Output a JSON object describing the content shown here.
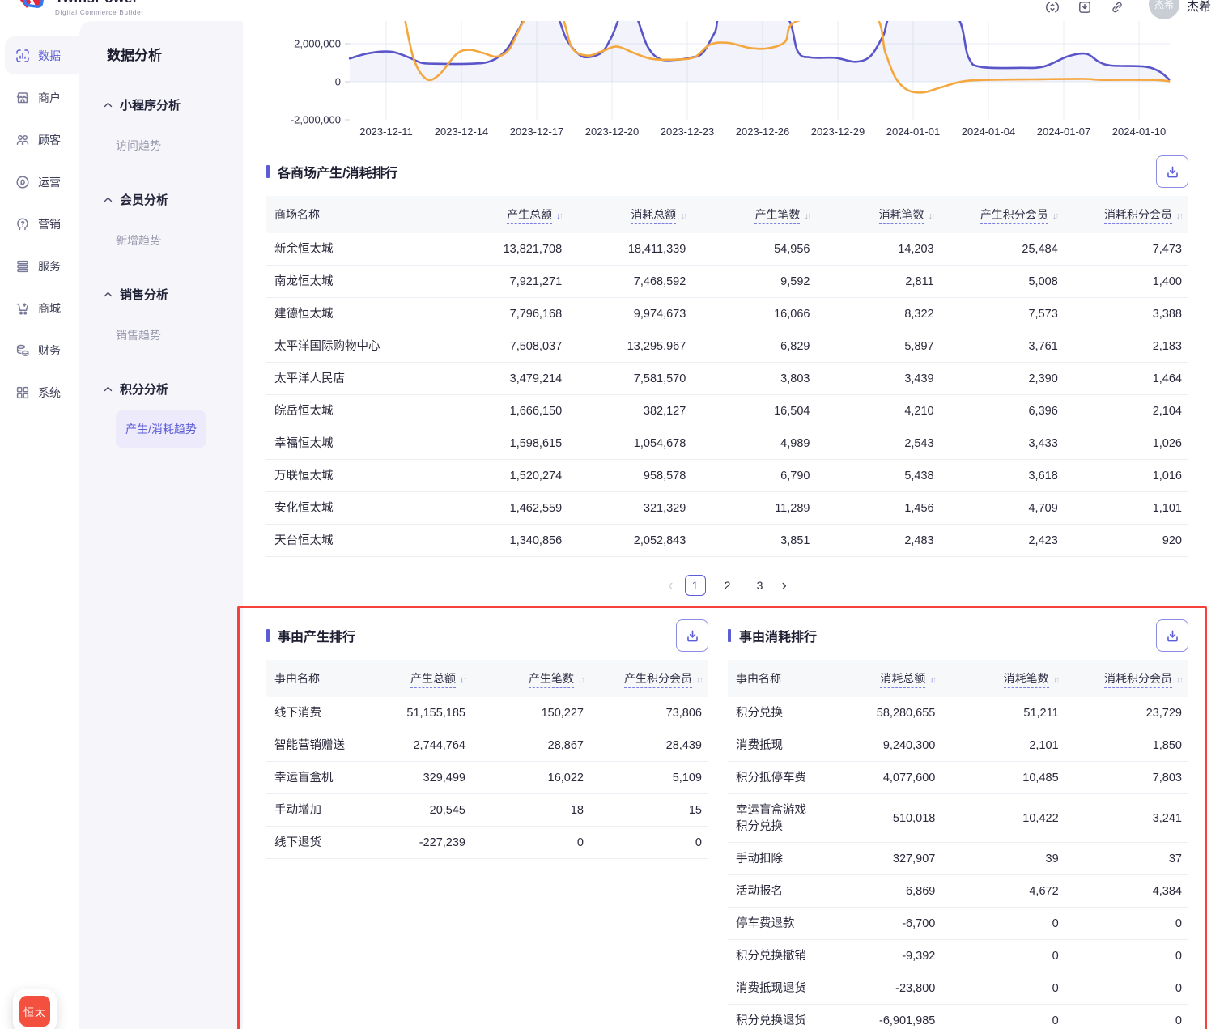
{
  "header": {
    "brand": {
      "name": "TwinsPower",
      "subtitle": "Digital Commerce Builder"
    },
    "icons": [
      "sync-icon",
      "version-box-icon",
      "link-icon"
    ],
    "user": {
      "avatar_text": "杰希",
      "name": "杰希"
    }
  },
  "sidebar": {
    "items": [
      {
        "key": "data",
        "label": "数据",
        "icon": "data-chart-icon",
        "active": true
      },
      {
        "key": "merchant",
        "label": "商户",
        "icon": "merchant-store-icon",
        "active": false
      },
      {
        "key": "customers",
        "label": "顾客",
        "icon": "customers-icon",
        "active": false
      },
      {
        "key": "operations",
        "label": "运营",
        "icon": "operations-icon",
        "active": false
      },
      {
        "key": "marketing",
        "label": "营销",
        "icon": "marketing-icon",
        "active": false
      },
      {
        "key": "service",
        "label": "服务",
        "icon": "service-list-icon",
        "active": false
      },
      {
        "key": "mall",
        "label": "商城",
        "icon": "mall-cart-icon",
        "active": false
      },
      {
        "key": "finance",
        "label": "财务",
        "icon": "finance-coins-icon",
        "active": false
      },
      {
        "key": "system",
        "label": "系统",
        "icon": "system-grid-icon",
        "active": false
      }
    ]
  },
  "subsidebar": {
    "title": "数据分析",
    "sections": [
      {
        "key": "miniapp",
        "label": "小程序分析",
        "items": [
          {
            "key": "visit-trend",
            "label": "访问趋势",
            "active": false
          }
        ]
      },
      {
        "key": "member",
        "label": "会员分析",
        "items": [
          {
            "key": "new-trend",
            "label": "新增趋势",
            "active": false
          }
        ]
      },
      {
        "key": "sales",
        "label": "销售分析",
        "items": [
          {
            "key": "sales-trend",
            "label": "销售趋势",
            "active": false
          }
        ]
      },
      {
        "key": "points",
        "label": "积分分析",
        "items": [
          {
            "key": "produce-consume-trend",
            "label": "产生/消耗趋势",
            "active": true
          }
        ]
      }
    ]
  },
  "chart": {
    "type": "line",
    "y_ticks": [
      {
        "label": "2,000,000",
        "value": 2
      },
      {
        "label": "0",
        "value": 0
      },
      {
        "label": "-2,000,000",
        "value": -2
      }
    ],
    "x_ticks": [
      "2023-12-11",
      "2023-12-14",
      "2023-12-17",
      "2023-12-20",
      "2023-12-23",
      "2023-12-26",
      "2023-12-29",
      "2024-01-01",
      "2024-01-04",
      "2024-01-07",
      "2024-01-10"
    ],
    "unit": "millions",
    "series": [
      {
        "id": "purple-series",
        "color": "#5a55c9",
        "fill": "rgba(90,85,201,0.07)",
        "points": [
          [
            -1.45,
            1.22
          ],
          [
            -0.7,
            1.5
          ],
          [
            0.2,
            1.58
          ],
          [
            0.9,
            1.28
          ],
          [
            1.4,
            1.0
          ],
          [
            1.9,
            0.95
          ],
          [
            3.4,
            0.95
          ],
          [
            4.2,
            1.1
          ],
          [
            4.8,
            1.7
          ],
          [
            5.3,
            2.8
          ],
          [
            5.7,
            3.6
          ],
          [
            6.7,
            3.6
          ],
          [
            7.2,
            2.2
          ],
          [
            7.7,
            1.42
          ],
          [
            8.1,
            1.3
          ],
          [
            8.6,
            1.55
          ],
          [
            9.0,
            2.4
          ],
          [
            9.4,
            3.6
          ],
          [
            9.9,
            3.6
          ],
          [
            10.4,
            1.9
          ],
          [
            10.9,
            1.2
          ],
          [
            11.6,
            1.16
          ],
          [
            12.1,
            1.26
          ],
          [
            12.6,
            1.5
          ],
          [
            13.1,
            2.6
          ],
          [
            13.5,
            3.6
          ],
          [
            15.8,
            3.6
          ],
          [
            16.4,
            1.6
          ],
          [
            16.9,
            1.28
          ],
          [
            17.9,
            1.26
          ],
          [
            18.7,
            1.05
          ],
          [
            19.3,
            1.35
          ],
          [
            19.8,
            2.4
          ],
          [
            20.3,
            3.6
          ],
          [
            22.6,
            3.6
          ],
          [
            23.2,
            1.3
          ],
          [
            23.7,
            0.78
          ],
          [
            25.3,
            0.73
          ],
          [
            26.2,
            0.8
          ],
          [
            27.2,
            1.35
          ],
          [
            27.9,
            1.47
          ],
          [
            28.4,
            1.05
          ],
          [
            28.9,
            0.85
          ],
          [
            30.2,
            0.8
          ],
          [
            30.8,
            0.55
          ],
          [
            31.2,
            0.12
          ]
        ]
      },
      {
        "id": "orange-series",
        "color": "#f4a73e",
        "fill": "none",
        "points": [
          [
            0.7,
            3.6
          ],
          [
            1.1,
            1.2
          ],
          [
            1.6,
            0.15
          ],
          [
            2.1,
            0.35
          ],
          [
            2.8,
            1.45
          ],
          [
            3.3,
            1.68
          ],
          [
            3.9,
            1.5
          ],
          [
            4.4,
            1.32
          ],
          [
            4.9,
            1.7
          ],
          [
            5.4,
            3.0
          ],
          [
            5.8,
            3.6
          ],
          [
            6.9,
            3.6
          ],
          [
            7.4,
            1.8
          ],
          [
            8.0,
            1.38
          ],
          [
            8.6,
            1.6
          ],
          [
            9.2,
            1.85
          ],
          [
            9.9,
            1.5
          ],
          [
            10.6,
            1.2
          ],
          [
            11.6,
            1.17
          ],
          [
            12.3,
            1.3
          ],
          [
            12.9,
            1.95
          ],
          [
            13.6,
            2.05
          ],
          [
            14.5,
            1.78
          ],
          [
            15.2,
            1.76
          ],
          [
            15.9,
            2.1
          ],
          [
            16.4,
            3.2
          ],
          [
            19.3,
            3.6
          ],
          [
            19.9,
            1.5
          ],
          [
            20.3,
            0.2
          ],
          [
            20.8,
            -0.45
          ],
          [
            21.4,
            -0.56
          ],
          [
            22.1,
            -0.3
          ],
          [
            22.9,
            0.0
          ],
          [
            23.8,
            0.1
          ],
          [
            26.0,
            0.13
          ],
          [
            27.8,
            0.15
          ],
          [
            28.6,
            0.1
          ],
          [
            30.6,
            0.1
          ],
          [
            31.2,
            0.02
          ]
        ]
      }
    ]
  },
  "mall_table": {
    "title": "各商场产生/消耗排行",
    "first_col_width": 220,
    "columns": [
      {
        "label": "商场名称",
        "sortable": false,
        "active": false
      },
      {
        "label": "产生总额",
        "sortable": true,
        "active": true
      },
      {
        "label": "消耗总额",
        "sortable": true,
        "active": false
      },
      {
        "label": "产生笔数",
        "sortable": true,
        "active": false
      },
      {
        "label": "消耗笔数",
        "sortable": true,
        "active": false
      },
      {
        "label": "产生积分会员",
        "sortable": true,
        "active": false
      },
      {
        "label": "消耗积分会员",
        "sortable": true,
        "active": false
      }
    ],
    "rows": [
      [
        "新余恒太城",
        "13,821,708",
        "18,411,339",
        "54,956",
        "14,203",
        "25,484",
        "7,473"
      ],
      [
        "南龙恒太城",
        "7,921,271",
        "7,468,592",
        "9,592",
        "2,811",
        "5,008",
        "1,400"
      ],
      [
        "建德恒太城",
        "7,796,168",
        "9,974,673",
        "16,066",
        "8,322",
        "7,573",
        "3,388"
      ],
      [
        "太平洋国际购物中心",
        "7,508,037",
        "13,295,967",
        "6,829",
        "5,897",
        "3,761",
        "2,183"
      ],
      [
        "太平洋人民店",
        "3,479,214",
        "7,581,570",
        "3,803",
        "3,439",
        "2,390",
        "1,464"
      ],
      [
        "皖岳恒太城",
        "1,666,150",
        "382,127",
        "16,504",
        "4,210",
        "6,396",
        "2,104"
      ],
      [
        "幸福恒太城",
        "1,598,615",
        "1,054,678",
        "4,989",
        "2,543",
        "3,433",
        "1,026"
      ],
      [
        "万联恒太城",
        "1,520,274",
        "958,578",
        "6,790",
        "5,438",
        "3,618",
        "1,016"
      ],
      [
        "安化恒太城",
        "1,462,559",
        "321,329",
        "11,289",
        "1,456",
        "4,709",
        "1,101"
      ],
      [
        "天台恒太城",
        "1,340,856",
        "2,052,843",
        "3,851",
        "2,483",
        "2,423",
        "920"
      ]
    ]
  },
  "pagination": {
    "prev_icon": "chevron-left-icon",
    "next_icon": "chevron-right-icon",
    "pages": [
      "1",
      "2",
      "3"
    ],
    "current": "1"
  },
  "produce_table": {
    "title": "事由产生排行",
    "first_col_width": 108,
    "columns": [
      {
        "label": "事由名称",
        "sortable": false,
        "active": false
      },
      {
        "label": "产生总额",
        "sortable": true,
        "active": true
      },
      {
        "label": "产生笔数",
        "sortable": true,
        "active": false
      },
      {
        "label": "产生积分会员",
        "sortable": true,
        "active": false
      }
    ],
    "rows": [
      [
        "线下消费",
        "51,155,185",
        "150,227",
        "73,806"
      ],
      [
        "智能营销赠送",
        "2,744,764",
        "28,867",
        "28,439"
      ],
      [
        "幸运盲盒机",
        "329,499",
        "16,022",
        "5,109"
      ],
      [
        "手动增加",
        "20,545",
        "18",
        "15"
      ],
      [
        "线下退货",
        "-227,239",
        "0",
        "0"
      ]
    ]
  },
  "consume_table": {
    "title": "事由消耗排行",
    "first_col_width": 112,
    "columns": [
      {
        "label": "事由名称",
        "sortable": false,
        "active": false
      },
      {
        "label": "消耗总额",
        "sortable": true,
        "active": true
      },
      {
        "label": "消耗笔数",
        "sortable": true,
        "active": false
      },
      {
        "label": "消耗积分会员",
        "sortable": true,
        "active": false
      }
    ],
    "rows": [
      [
        "积分兑换",
        "58,280,655",
        "51,211",
        "23,729"
      ],
      [
        "消费抵现",
        "9,240,300",
        "2,101",
        "1,850"
      ],
      [
        "积分抵停车费",
        "4,077,600",
        "10,485",
        "7,803"
      ],
      [
        "幸运盲盒游戏\n积分兑换",
        "510,018",
        "10,422",
        "3,241"
      ],
      [
        "手动扣除",
        "327,907",
        "39",
        "37"
      ],
      [
        "活动报名",
        "6,869",
        "4,672",
        "4,384"
      ],
      [
        "停车费退款",
        "-6,700",
        "0",
        "0"
      ],
      [
        "积分兑换撤销",
        "-9,392",
        "0",
        "0"
      ],
      [
        "消费抵现退货",
        "-23,800",
        "0",
        "0"
      ],
      [
        "积分兑换退货",
        "-6,901,985",
        "0",
        "0"
      ]
    ]
  },
  "colors": {
    "accent": "#5b5cd6",
    "line_purple": "#5a55c9",
    "line_orange": "#f4a73e",
    "highlight_red": "#f5423b",
    "badge_red": "#f4503f"
  },
  "floating_badge": {
    "label": "恒太"
  }
}
